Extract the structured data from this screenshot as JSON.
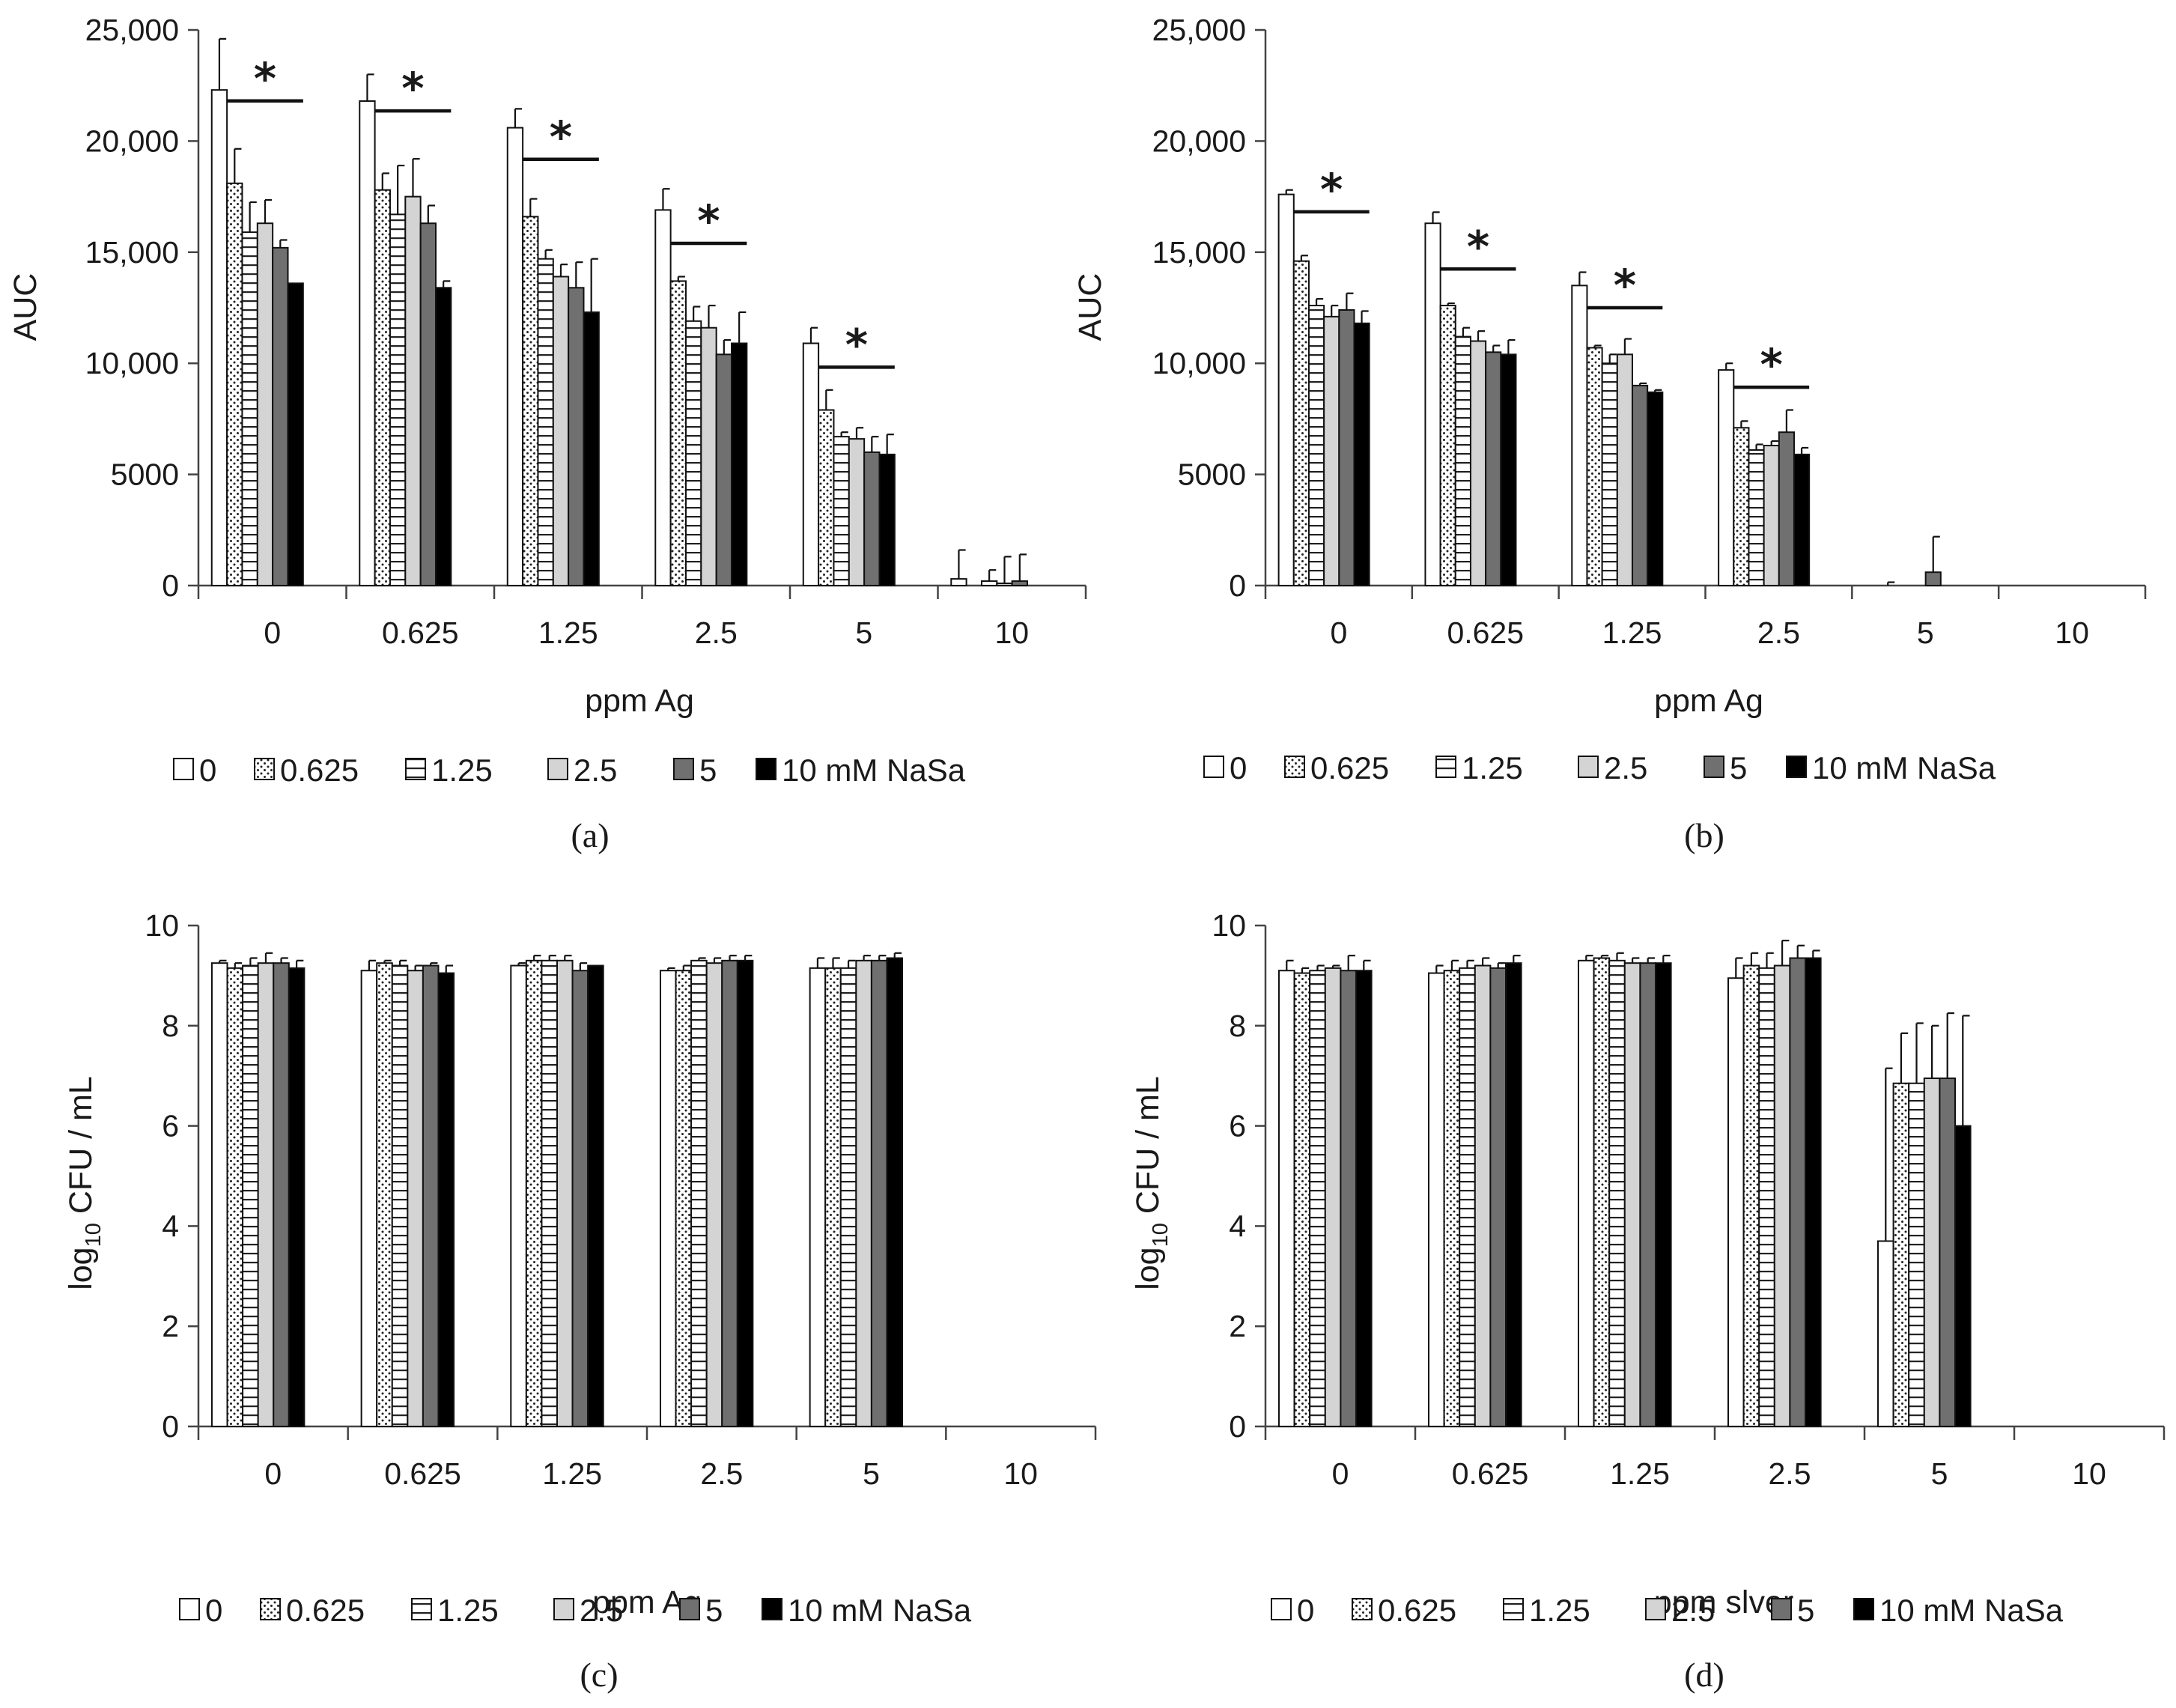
{
  "series_names": [
    "0",
    "0.625",
    "1.25",
    "2.5",
    "5",
    "10 mM NaSa"
  ],
  "series_styles": [
    {
      "fill": "#ffffff",
      "pattern": "none"
    },
    {
      "fill": "#ffffff",
      "pattern": "dots"
    },
    {
      "fill": "#ffffff",
      "pattern": "hlines"
    },
    {
      "fill": "#d4d4d4",
      "pattern": "none"
    },
    {
      "fill": "#707070",
      "pattern": "none"
    },
    {
      "fill": "#000000",
      "pattern": "none"
    }
  ],
  "significance_marker": "*",
  "chart_data": [
    {
      "type": "bar",
      "panel": "(a)",
      "xlabel": "ppm Ag",
      "ylabel": "AUC",
      "ylabel_sub": "",
      "ylim": [
        0,
        25000
      ],
      "yticks": [
        0,
        5000,
        10000,
        15000,
        20000,
        25000
      ],
      "ytick_labels": [
        "0",
        "5000",
        "10,000",
        "15,000",
        "20,000",
        "25,000"
      ],
      "categories": [
        "0",
        "0.625",
        "1.25",
        "2.5",
        "5",
        "10"
      ],
      "series": [
        {
          "name": "0",
          "values": [
            22300,
            21800,
            20600,
            16900,
            10900,
            300
          ],
          "errors": [
            2300,
            1200,
            850,
            950,
            700,
            1300
          ]
        },
        {
          "name": "0.625",
          "values": [
            18100,
            17800,
            16600,
            13700,
            7900,
            0
          ],
          "errors": [
            1550,
            750,
            800,
            200,
            900,
            0
          ]
        },
        {
          "name": "1.25",
          "values": [
            15900,
            16700,
            14700,
            11900,
            6700,
            200
          ],
          "errors": [
            1350,
            2200,
            400,
            650,
            200,
            500
          ]
        },
        {
          "name": "2.5",
          "values": [
            16300,
            17500,
            13900,
            11600,
            6600,
            100
          ],
          "errors": [
            1050,
            1700,
            550,
            1000,
            500,
            1200
          ]
        },
        {
          "name": "5",
          "values": [
            15200,
            16300,
            13400,
            10400,
            6000,
            200
          ],
          "errors": [
            350,
            800,
            1150,
            650,
            700,
            1200
          ]
        },
        {
          "name": "10 mM NaSa",
          "values": [
            13600,
            13400,
            12300,
            10900,
            5900,
            0
          ],
          "errors": [
            0,
            300,
            2400,
            1400,
            900,
            0
          ]
        }
      ],
      "significance": [
        [
          0,
          2.0
        ],
        [
          1,
          2.0
        ],
        [
          2,
          1.6
        ],
        [
          3,
          1.3
        ],
        [
          4,
          0.8
        ]
      ]
    },
    {
      "type": "bar",
      "panel": "(b)",
      "xlabel": "ppm Ag",
      "ylabel": "AUC",
      "ylabel_sub": "",
      "ylim": [
        0,
        25000
      ],
      "yticks": [
        0,
        5000,
        10000,
        15000,
        20000,
        25000
      ],
      "ytick_labels": [
        "0",
        "5000",
        "10,000",
        "15,000",
        "20,000",
        "25,000"
      ],
      "categories": [
        "0",
        "0.625",
        "1.25",
        "2.5",
        "5",
        "10"
      ],
      "series": [
        {
          "name": "0",
          "values": [
            17600,
            16300,
            13500,
            9700,
            0,
            0
          ],
          "errors": [
            200,
            500,
            600,
            300,
            0,
            0
          ]
        },
        {
          "name": "0.625",
          "values": [
            14600,
            12600,
            10700,
            7100,
            0,
            0
          ],
          "errors": [
            250,
            100,
            100,
            300,
            150,
            0
          ]
        },
        {
          "name": "1.25",
          "values": [
            12600,
            11200,
            10000,
            6100,
            0,
            0
          ],
          "errors": [
            300,
            400,
            400,
            250,
            0,
            0
          ]
        },
        {
          "name": "2.5",
          "values": [
            12100,
            11000,
            10400,
            6300,
            0,
            0
          ],
          "errors": [
            500,
            450,
            700,
            200,
            0,
            0
          ]
        },
        {
          "name": "5",
          "values": [
            12400,
            10500,
            9000,
            6900,
            600,
            0
          ],
          "errors": [
            750,
            300,
            100,
            1000,
            1600,
            0
          ]
        },
        {
          "name": "10 mM NaSa",
          "values": [
            11800,
            10400,
            8700,
            5900,
            0,
            0
          ],
          "errors": [
            550,
            650,
            100,
            300,
            0,
            0
          ]
        }
      ],
      "significance": [
        [
          0,
          1.8
        ],
        [
          1,
          1.35
        ],
        [
          2,
          1.2
        ],
        [
          3,
          0.8
        ]
      ]
    },
    {
      "type": "bar",
      "panel": "(c)",
      "xlabel": "ppm Ag",
      "ylabel": "log",
      "ylabel_sub": "10",
      "ylabel_rest": " CFU / mL",
      "ylim": [
        0,
        10
      ],
      "yticks": [
        0,
        2,
        4,
        6,
        8,
        10
      ],
      "ytick_labels": [
        "0",
        "2",
        "4",
        "6",
        "8",
        "10"
      ],
      "categories": [
        "0",
        "0.625",
        "1.25",
        "2.5",
        "5",
        "10"
      ],
      "series": [
        {
          "name": "0",
          "values": [
            9.25,
            9.1,
            9.2,
            9.1,
            9.15,
            0
          ],
          "errors": [
            0.05,
            0.2,
            0.05,
            0.05,
            0.2,
            0
          ]
        },
        {
          "name": "0.625",
          "values": [
            9.15,
            9.25,
            9.3,
            9.1,
            9.15,
            0
          ],
          "errors": [
            0.1,
            0.05,
            0.1,
            0.1,
            0.2,
            0
          ]
        },
        {
          "name": "1.25",
          "values": [
            9.2,
            9.2,
            9.3,
            9.3,
            9.15,
            0
          ],
          "errors": [
            0.15,
            0.1,
            0.1,
            0.05,
            0.15,
            0
          ]
        },
        {
          "name": "2.5",
          "values": [
            9.25,
            9.1,
            9.3,
            9.25,
            9.3,
            0
          ],
          "errors": [
            0.2,
            0.1,
            0.1,
            0.1,
            0.1,
            0
          ]
        },
        {
          "name": "5",
          "values": [
            9.25,
            9.2,
            9.1,
            9.3,
            9.3,
            0
          ],
          "errors": [
            0.1,
            0.05,
            0.15,
            0.1,
            0.1,
            0
          ]
        },
        {
          "name": "10 mM NaSa",
          "values": [
            9.15,
            9.05,
            9.2,
            9.3,
            9.35,
            0
          ],
          "errors": [
            0.15,
            0.15,
            0,
            0.1,
            0.1,
            0
          ]
        }
      ],
      "significance": []
    },
    {
      "type": "bar",
      "panel": "(d)",
      "xlabel": "ppm slver",
      "ylabel": "log",
      "ylabel_sub": "10",
      "ylabel_rest": " CFU / mL",
      "ylim": [
        0,
        10
      ],
      "yticks": [
        0,
        2,
        4,
        6,
        8,
        10
      ],
      "ytick_labels": [
        "0",
        "2",
        "4",
        "6",
        "8",
        "10"
      ],
      "categories": [
        "0",
        "0.625",
        "1.25",
        "2.5",
        "5",
        "10"
      ],
      "series": [
        {
          "name": "0",
          "values": [
            9.1,
            9.05,
            9.3,
            8.95,
            3.7,
            0
          ],
          "errors": [
            0.2,
            0.15,
            0.1,
            0.4,
            3.45,
            0
          ]
        },
        {
          "name": "0.625",
          "values": [
            9.05,
            9.1,
            9.35,
            9.2,
            6.85,
            0
          ],
          "errors": [
            0.1,
            0.2,
            0.05,
            0.25,
            1.0,
            0
          ]
        },
        {
          "name": "1.25",
          "values": [
            9.1,
            9.15,
            9.3,
            9.15,
            6.85,
            0
          ],
          "errors": [
            0.1,
            0.15,
            0.15,
            0.3,
            1.2,
            0
          ]
        },
        {
          "name": "2.5",
          "values": [
            9.15,
            9.2,
            9.25,
            9.2,
            6.95,
            0
          ],
          "errors": [
            0.05,
            0.15,
            0.1,
            0.5,
            1.05,
            0
          ]
        },
        {
          "name": "5",
          "values": [
            9.1,
            9.15,
            9.25,
            9.35,
            6.95,
            0
          ],
          "errors": [
            0.3,
            0.1,
            0.1,
            0.25,
            1.3,
            0
          ]
        },
        {
          "name": "10 mM NaSa",
          "values": [
            9.1,
            9.25,
            9.25,
            9.35,
            6.0,
            0
          ],
          "errors": [
            0.2,
            0.15,
            0.15,
            0.15,
            2.2,
            0
          ]
        }
      ],
      "significance": []
    }
  ]
}
